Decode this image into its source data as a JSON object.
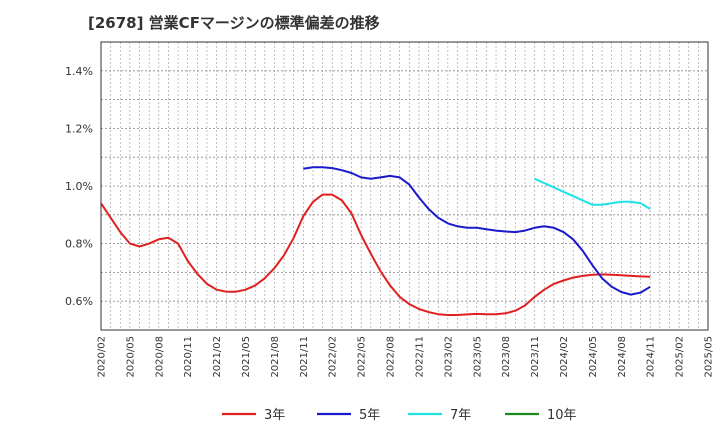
{
  "title": "[2678]  営業CFマージンの標準偏差の推移",
  "chart_data": {
    "type": "line",
    "title": "[2678]  営業CFマージンの標準偏差の推移",
    "xlabel": "",
    "ylabel": "",
    "ylim": [
      0.5,
      1.5
    ],
    "yticks": [
      0.6,
      0.8,
      1.0,
      1.2,
      1.4
    ],
    "ytick_labels": [
      "0.6%",
      "0.8%",
      "1.0%",
      "1.2%",
      "1.4%"
    ],
    "xticks": [
      "2020/02",
      "2020/05",
      "2020/08",
      "2020/11",
      "2021/02",
      "2021/05",
      "2021/08",
      "2021/11",
      "2022/02",
      "2022/05",
      "2022/08",
      "2022/11",
      "2023/02",
      "2023/05",
      "2023/08",
      "2023/11",
      "2024/02",
      "2024/05",
      "2024/08",
      "2024/11",
      "2025/02",
      "2025/05"
    ],
    "grid": true,
    "legend_position": "bottom",
    "series": [
      {
        "name": "3年",
        "color": "#e02020",
        "x": [
          "2020/02",
          "2020/03",
          "2020/04",
          "2020/05",
          "2020/06",
          "2020/07",
          "2020/08",
          "2020/09",
          "2020/10",
          "2020/11",
          "2020/12",
          "2021/01",
          "2021/02",
          "2021/03",
          "2021/04",
          "2021/05",
          "2021/06",
          "2021/07",
          "2021/08",
          "2021/09",
          "2021/10",
          "2021/11",
          "2021/12",
          "2022/01",
          "2022/02",
          "2022/03",
          "2022/04",
          "2022/05",
          "2022/06",
          "2022/07",
          "2022/08",
          "2022/09",
          "2022/10",
          "2022/11",
          "2022/12",
          "2023/01",
          "2023/02",
          "2023/03",
          "2023/04",
          "2023/05",
          "2023/06",
          "2023/07",
          "2023/08",
          "2023/09",
          "2023/10",
          "2023/11",
          "2023/12",
          "2024/01",
          "2024/02",
          "2024/03",
          "2024/04",
          "2024/05",
          "2024/06",
          "2024/07",
          "2024/08",
          "2024/09",
          "2024/10",
          "2024/11"
        ],
        "values": [
          0.94,
          0.89,
          0.84,
          0.8,
          0.79,
          0.8,
          0.815,
          0.82,
          0.8,
          0.74,
          0.695,
          0.66,
          0.64,
          0.633,
          0.633,
          0.64,
          0.655,
          0.68,
          0.715,
          0.76,
          0.82,
          0.895,
          0.945,
          0.97,
          0.97,
          0.95,
          0.905,
          0.83,
          0.765,
          0.705,
          0.655,
          0.615,
          0.59,
          0.573,
          0.562,
          0.555,
          0.552,
          0.552,
          0.554,
          0.556,
          0.555,
          0.555,
          0.558,
          0.567,
          0.585,
          0.615,
          0.64,
          0.66,
          0.672,
          0.682,
          0.688,
          0.692,
          0.693,
          0.692,
          0.69,
          0.688,
          0.686,
          0.685
        ]
      },
      {
        "name": "5年",
        "color": "#1a1acc",
        "x": [
          "2021/11",
          "2021/12",
          "2022/01",
          "2022/02",
          "2022/03",
          "2022/04",
          "2022/05",
          "2022/06",
          "2022/07",
          "2022/08",
          "2022/09",
          "2022/10",
          "2022/11",
          "2022/12",
          "2023/01",
          "2023/02",
          "2023/03",
          "2023/04",
          "2023/05",
          "2023/06",
          "2023/07",
          "2023/08",
          "2023/09",
          "2023/10",
          "2023/11",
          "2023/12",
          "2024/01",
          "2024/02",
          "2024/03",
          "2024/04",
          "2024/05",
          "2024/06",
          "2024/07",
          "2024/08",
          "2024/09",
          "2024/10",
          "2024/11"
        ],
        "values": [
          1.06,
          1.065,
          1.065,
          1.062,
          1.055,
          1.045,
          1.03,
          1.025,
          1.03,
          1.035,
          1.03,
          1.005,
          0.96,
          0.92,
          0.89,
          0.87,
          0.86,
          0.855,
          0.855,
          0.85,
          0.845,
          0.842,
          0.84,
          0.845,
          0.855,
          0.86,
          0.855,
          0.84,
          0.815,
          0.775,
          0.725,
          0.68,
          0.65,
          0.632,
          0.623,
          0.63,
          0.65
        ]
      },
      {
        "name": "7年",
        "color": "#20e0e8",
        "x": [
          "2023/11",
          "2023/12",
          "2024/01",
          "2024/02",
          "2024/03",
          "2024/04",
          "2024/05",
          "2024/06",
          "2024/07",
          "2024/08",
          "2024/09",
          "2024/10",
          "2024/11"
        ],
        "values": [
          1.025,
          1.01,
          0.995,
          0.98,
          0.965,
          0.95,
          0.935,
          0.935,
          0.94,
          0.945,
          0.945,
          0.94,
          0.92
        ]
      },
      {
        "name": "10年",
        "color": "#1a8a1a",
        "x": [],
        "values": []
      }
    ]
  }
}
